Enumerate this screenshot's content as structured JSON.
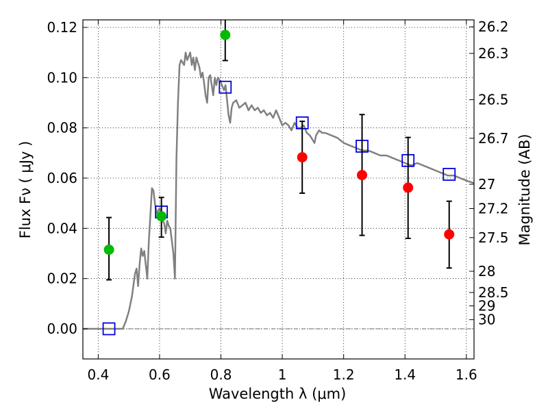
{
  "chart_data": {
    "type": "scatter",
    "xlabel": "Wavelength  λ (μm)",
    "ylabel": "Flux  Fν  ( μJy )",
    "ylabel_right": "Magnitude (AB)",
    "xlim": [
      0.35,
      1.625
    ],
    "ylim": [
      -0.012,
      0.123
    ],
    "x_ticks": [
      0.4,
      0.6,
      0.8,
      1.0,
      1.2,
      1.4,
      1.6
    ],
    "x_tick_labels": [
      "0.4",
      "0.6",
      "0.8",
      "1",
      "1.2",
      "1.4",
      "1.6"
    ],
    "y_ticks": [
      0.0,
      0.02,
      0.04,
      0.06,
      0.08,
      0.1,
      0.12
    ],
    "y_tick_labels": [
      "0.00",
      "0.02",
      "0.04",
      "0.06",
      "0.08",
      "0.10",
      "0.12"
    ],
    "mag_ticks": [
      "26.2",
      "26.3",
      "26.5",
      "26.7",
      "27",
      "27.2",
      "27.5",
      "28",
      "28.5",
      "29",
      "30"
    ],
    "grid": true,
    "series": [
      {
        "marker": "circle",
        "color": "#00bb00",
        "points": [
          {
            "x": 0.435,
            "y": 0.0315,
            "yerr_low": 0.0195,
            "yerr_high": 0.0443
          },
          {
            "x": 0.606,
            "y": 0.0448,
            "yerr_low": 0.0365,
            "yerr_high": 0.0523
          },
          {
            "x": 0.814,
            "y": 0.117,
            "yerr_low": 0.1068,
            "yerr_high": 0.1235
          }
        ]
      },
      {
        "marker": "circle",
        "color": "#ff0000",
        "points": [
          {
            "x": 1.065,
            "y": 0.0683,
            "yerr_low": 0.054,
            "yerr_high": 0.0826
          },
          {
            "x": 1.26,
            "y": 0.0612,
            "yerr_low": 0.0372,
            "yerr_high": 0.0853
          },
          {
            "x": 1.41,
            "y": 0.0562,
            "yerr_low": 0.036,
            "yerr_high": 0.0762
          },
          {
            "x": 1.544,
            "y": 0.0376,
            "yerr_low": 0.0242,
            "yerr_high": 0.0508
          }
        ]
      },
      {
        "marker": "open-square",
        "color": "#0000dd",
        "points": [
          {
            "x": 0.435,
            "y": 0.0
          },
          {
            "x": 0.606,
            "y": 0.0465
          },
          {
            "x": 0.814,
            "y": 0.0962
          },
          {
            "x": 1.065,
            "y": 0.082
          },
          {
            "x": 1.26,
            "y": 0.0727
          },
          {
            "x": 1.41,
            "y": 0.067
          },
          {
            "x": 1.544,
            "y": 0.0615
          }
        ]
      },
      {
        "marker": "line",
        "color": "#808080",
        "x": [
          0.35,
          0.48,
          0.49,
          0.5,
          0.51,
          0.52,
          0.525,
          0.53,
          0.535,
          0.54,
          0.545,
          0.55,
          0.56,
          0.565,
          0.57,
          0.575,
          0.58,
          0.585,
          0.59,
          0.6,
          0.605,
          0.61,
          0.615,
          0.62,
          0.625,
          0.63,
          0.635,
          0.64,
          0.645,
          0.65,
          0.655,
          0.66,
          0.665,
          0.67,
          0.68,
          0.685,
          0.69,
          0.7,
          0.705,
          0.71,
          0.715,
          0.72,
          0.725,
          0.73,
          0.735,
          0.74,
          0.745,
          0.75,
          0.755,
          0.76,
          0.765,
          0.77,
          0.775,
          0.78,
          0.785,
          0.79,
          0.8,
          0.81,
          0.815,
          0.82,
          0.825,
          0.83,
          0.835,
          0.84,
          0.85,
          0.86,
          0.87,
          0.88,
          0.89,
          0.9,
          0.91,
          0.92,
          0.93,
          0.94,
          0.95,
          0.96,
          0.97,
          0.98,
          0.99,
          1.0,
          1.01,
          1.02,
          1.03,
          1.04,
          1.05,
          1.06,
          1.07,
          1.08,
          1.09,
          1.1,
          1.105,
          1.11,
          1.12,
          1.13,
          1.14,
          1.16,
          1.18,
          1.2,
          1.22,
          1.24,
          1.26,
          1.28,
          1.3,
          1.32,
          1.34,
          1.36,
          1.38,
          1.4,
          1.42,
          1.44,
          1.46,
          1.48,
          1.5,
          1.52,
          1.54,
          1.56,
          1.58,
          1.6,
          1.625
        ],
        "y": [
          0.0,
          0.0,
          0.003,
          0.007,
          0.013,
          0.022,
          0.024,
          0.017,
          0.026,
          0.032,
          0.029,
          0.031,
          0.02,
          0.035,
          0.045,
          0.056,
          0.055,
          0.05,
          0.046,
          0.048,
          0.044,
          0.043,
          0.042,
          0.038,
          0.043,
          0.041,
          0.04,
          0.035,
          0.03,
          0.02,
          0.068,
          0.09,
          0.105,
          0.107,
          0.105,
          0.11,
          0.107,
          0.11,
          0.105,
          0.108,
          0.103,
          0.108,
          0.106,
          0.104,
          0.1,
          0.102,
          0.098,
          0.093,
          0.09,
          0.1,
          0.101,
          0.097,
          0.093,
          0.1,
          0.097,
          0.1,
          0.098,
          0.095,
          0.097,
          0.091,
          0.085,
          0.082,
          0.088,
          0.09,
          0.091,
          0.088,
          0.089,
          0.09,
          0.087,
          0.089,
          0.087,
          0.088,
          0.086,
          0.087,
          0.085,
          0.086,
          0.084,
          0.087,
          0.084,
          0.081,
          0.082,
          0.081,
          0.079,
          0.082,
          0.08,
          0.08,
          0.081,
          0.078,
          0.077,
          0.075,
          0.074,
          0.077,
          0.079,
          0.078,
          0.078,
          0.077,
          0.076,
          0.074,
          0.073,
          0.072,
          0.071,
          0.071,
          0.07,
          0.069,
          0.069,
          0.068,
          0.067,
          0.066,
          0.065,
          0.066,
          0.065,
          0.064,
          0.063,
          0.062,
          0.061,
          0.061,
          0.06,
          0.059,
          0.058
        ]
      }
    ]
  }
}
